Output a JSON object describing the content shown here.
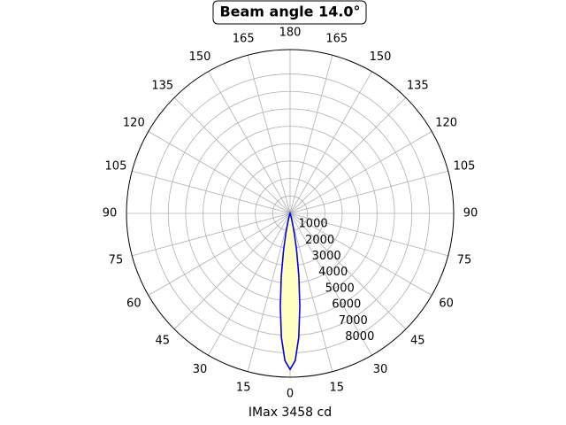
{
  "chart_data": {
    "type": "polar",
    "title": "Beam angle 14.0°",
    "xlabel": "IMax 3458 cd",
    "x": [
      -20,
      -18,
      -16,
      -14,
      -12,
      -10,
      -8,
      -6,
      -4,
      -2,
      0,
      2,
      4,
      6,
      8,
      10,
      12,
      14,
      16,
      18,
      20
    ],
    "series": [
      {
        "color": "#0000ee",
        "fill": "#ffffc0",
        "values": [
          31,
          91,
          238,
          558,
          1166,
          2170,
          3612,
          5372,
          7137,
          8457,
          8950,
          8457,
          7137,
          5372,
          3612,
          2170,
          1166,
          558,
          238,
          91,
          31
        ]
      }
    ],
    "ylim": [
      0,
      9400
    ],
    "yticks": [
      1000,
      2000,
      3000,
      4000,
      5000,
      6000,
      7000,
      8000
    ],
    "xticks": [
      0,
      15,
      30,
      45,
      60,
      75,
      90,
      105,
      120,
      135,
      150,
      165,
      180,
      {
        "value": 195,
        "label": "165"
      },
      {
        "value": 210,
        "label": "150"
      },
      {
        "value": 225,
        "label": "135"
      },
      {
        "value": 240,
        "label": "120"
      },
      {
        "value": 255,
        "label": "105"
      },
      {
        "value": 270,
        "label": "90"
      },
      {
        "value": 285,
        "label": "75"
      },
      {
        "value": 300,
        "label": "60"
      },
      {
        "value": 315,
        "label": "45"
      },
      {
        "value": 330,
        "label": "30"
      },
      {
        "value": 345,
        "label": "15"
      }
    ],
    "grid": true
  }
}
